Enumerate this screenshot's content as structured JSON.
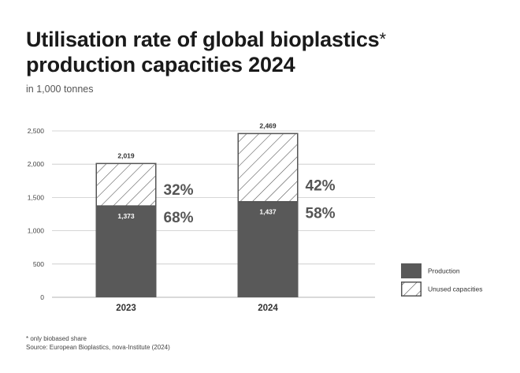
{
  "chart_data": {
    "type": "bar",
    "stacked": true,
    "title": "Utilisation rate of global bioplastics",
    "title_line2": "production capacities 2024",
    "title_mark": "*",
    "subtitle": "in 1,000 tonnes",
    "categories": [
      "2023",
      "2024"
    ],
    "series": [
      {
        "name": "Production",
        "values": [
          1373,
          1437
        ],
        "value_labels": [
          "1,373",
          "1,437"
        ],
        "share_labels": [
          "68%",
          "58%"
        ],
        "color": "#595959"
      },
      {
        "name": "Unused capacities",
        "values": [
          646,
          1032
        ],
        "share_labels": [
          "32%",
          "42%"
        ],
        "color": "#ffffff",
        "pattern": "hatch"
      }
    ],
    "totals": [
      2019,
      2469
    ],
    "total_labels": [
      "2,019",
      "2,469"
    ],
    "ylim": [
      0,
      2500
    ],
    "yticks": [
      0,
      500,
      1000,
      1500,
      2000,
      2500
    ],
    "ytick_labels": [
      "0",
      "500",
      "1,000",
      "1,500",
      "2,000",
      "2,500"
    ],
    "grid": true,
    "legend_position": "right"
  },
  "footnote": "* only biobased share",
  "source": "Source: European Bioplastics, nova-Institute (2024)",
  "colors": {
    "bar_dark": "#595959",
    "grid": "#c8c8c8",
    "text": "#222222"
  }
}
